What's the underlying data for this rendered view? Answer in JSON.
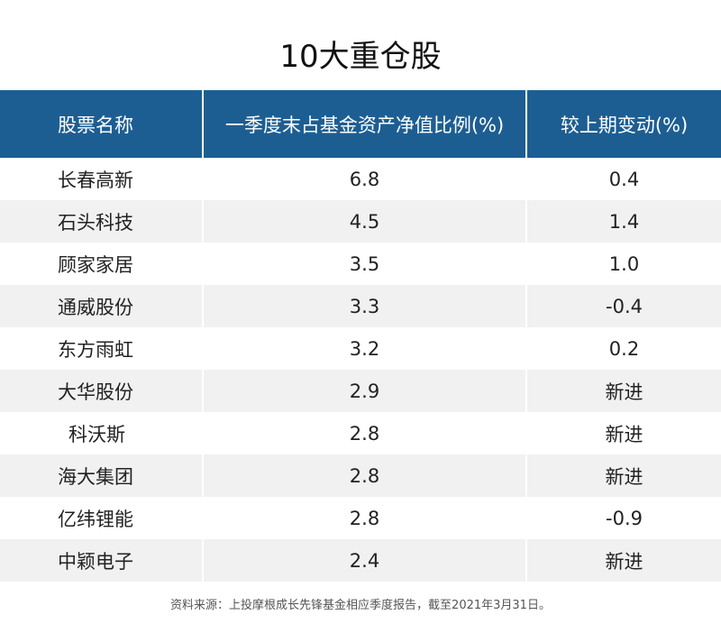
{
  "title": "10大重仓股",
  "table": {
    "headers": [
      "股票名称",
      "一季度末占基金资产净值比例(%)",
      "较上期变动(%)"
    ],
    "rows": [
      {
        "name": "长春高新",
        "ratio": "6.8",
        "change": "0.4"
      },
      {
        "name": "石头科技",
        "ratio": "4.5",
        "change": "1.4"
      },
      {
        "name": "顾家家居",
        "ratio": "3.5",
        "change": "1.0"
      },
      {
        "name": "通威股份",
        "ratio": "3.3",
        "change": "-0.4"
      },
      {
        "name": "东方雨虹",
        "ratio": "3.2",
        "change": "0.2"
      },
      {
        "name": "大华股份",
        "ratio": "2.9",
        "change": "新进"
      },
      {
        "name": "科沃斯",
        "ratio": "2.8",
        "change": "新进"
      },
      {
        "name": "海大集团",
        "ratio": "2.8",
        "change": "新进"
      },
      {
        "name": "亿纬锂能",
        "ratio": "2.8",
        "change": "-0.9"
      },
      {
        "name": "中颖电子",
        "ratio": "2.4",
        "change": "新进"
      }
    ]
  },
  "colors": {
    "header_bg": "#1d5e92",
    "header_text": "#ffffff",
    "stripe": "#f1f1f1"
  },
  "source": "资料来源：上投摩根成长先锋基金相应季度报告，截至2021年3月31日。"
}
